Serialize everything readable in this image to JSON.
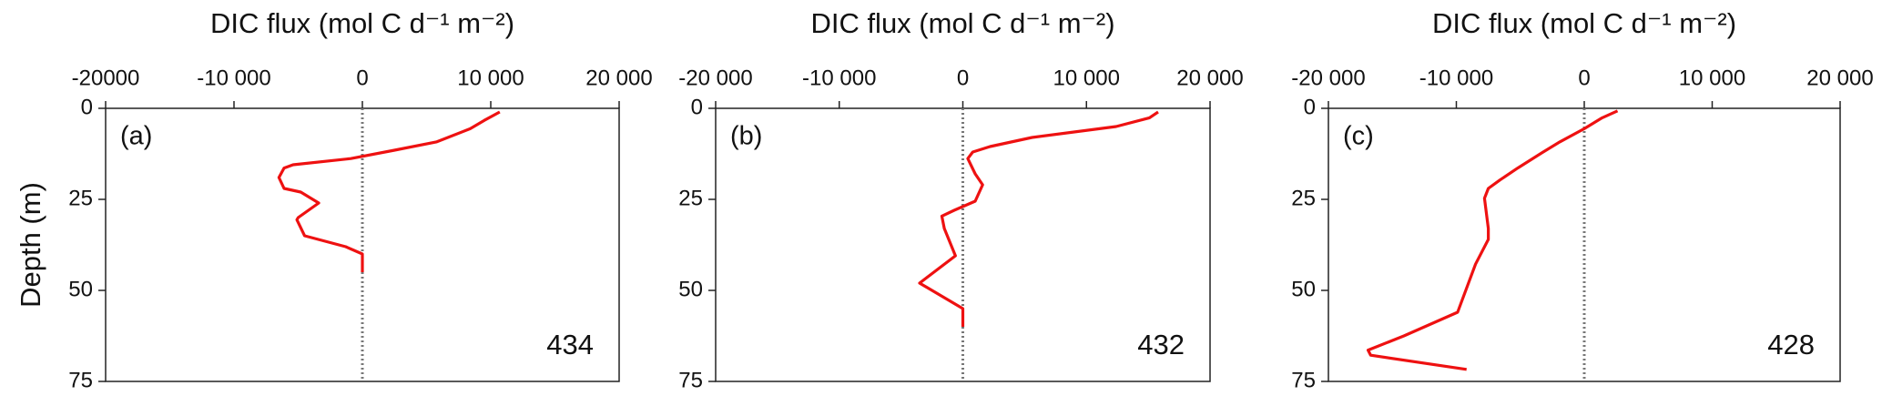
{
  "chart_data": [
    {
      "type": "line",
      "title": "DIC  flux (mol C d⁻¹ m⁻²)",
      "y_label": "Depth (m)",
      "panel_label": "(a)",
      "annotation": "434",
      "color": "#ee1111",
      "x": [
        10700,
        9500,
        8400,
        5800,
        2500,
        -900,
        -5400,
        -6100,
        -6500,
        -6100,
        -4800,
        -3400,
        -5000,
        -5100,
        -4500,
        -1300,
        0,
        0
      ],
      "values": [
        1,
        3.3,
        5.6,
        9.2,
        11.5,
        13.8,
        15.5,
        16.4,
        19,
        22,
        23,
        26,
        30,
        30.6,
        35,
        38,
        40,
        45
      ],
      "xlim": [
        -20000,
        20000
      ],
      "ylim": [
        75,
        0
      ],
      "xticks": [
        {
          "value": -20000,
          "label": "-20000"
        },
        {
          "value": -10000,
          "label": "-10 000"
        },
        0,
        {
          "value": 10000,
          "label": "10 000"
        },
        {
          "value": 20000,
          "label": "20 000"
        }
      ],
      "yticks": [
        0,
        25,
        50,
        75
      ]
    },
    {
      "type": "line",
      "title": "DIC  flux (mol C d⁻¹ m⁻²)",
      "panel_label": "(b)",
      "annotation": "432",
      "color": "#ee1111",
      "x": [
        15800,
        15100,
        12400,
        5600,
        2200,
        800,
        400,
        1000,
        1600,
        1000,
        -700,
        -1700,
        -1500,
        -600,
        -3500,
        0,
        0
      ],
      "values": [
        1,
        2.6,
        5,
        8,
        10.5,
        12,
        13.8,
        18,
        21,
        25.5,
        28,
        29.6,
        33,
        40.5,
        48,
        55,
        60
      ],
      "xlim": [
        -20000,
        20000
      ],
      "ylim": [
        75,
        0
      ],
      "xticks": [
        {
          "value": -20000,
          "label": "-20 000"
        },
        {
          "value": -10000,
          "label": "-10 000"
        },
        0,
        {
          "value": 10000,
          "label": "10 000"
        },
        {
          "value": 20000,
          "label": "20 000"
        }
      ],
      "yticks": [
        0,
        25,
        50,
        75
      ]
    },
    {
      "type": "line",
      "title": "DIC  flux (mol C d⁻¹ m⁻²)",
      "panel_label": "(c)",
      "annotation": "428",
      "color": "#ee1111",
      "x": [
        2600,
        1400,
        0,
        -1900,
        -3300,
        -5200,
        -6600,
        -7500,
        -7800,
        -7500,
        -7500,
        -8500,
        -9900,
        -14100,
        -16900,
        -16700,
        -9200
      ],
      "values": [
        0.7,
        2.6,
        5.6,
        9.2,
        12.2,
        16.4,
        19.7,
        22,
        24.7,
        33,
        36,
        42.8,
        56,
        62.5,
        66.4,
        67.8,
        71.7
      ],
      "xlim": [
        -20000,
        20000
      ],
      "ylim": [
        75,
        0
      ],
      "xticks": [
        {
          "value": -20000,
          "label": "-20 000"
        },
        {
          "value": -10000,
          "label": "-10 000"
        },
        0,
        {
          "value": 10000,
          "label": "10 000"
        },
        {
          "value": 20000,
          "label": "20 000"
        }
      ],
      "yticks": [
        0,
        25,
        50,
        75
      ]
    }
  ]
}
